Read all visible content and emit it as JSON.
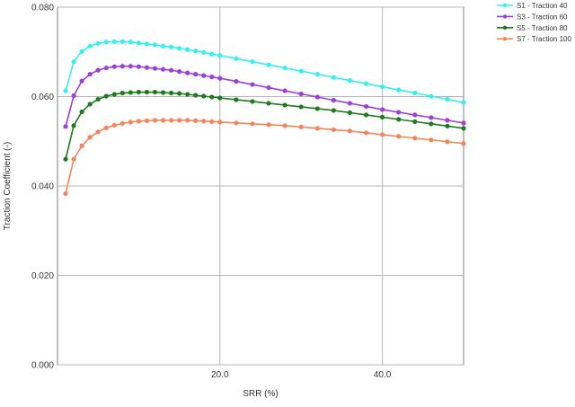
{
  "colors": {
    "background": "#ffffff",
    "grid": "#b4b4b4",
    "axis": "#7f7f7f"
  },
  "chart_data": {
    "type": "line",
    "title": "",
    "xlabel": "SRR (%)",
    "ylabel": "Traction Coefficient (-)",
    "xlim": [
      0,
      50
    ],
    "ylim": [
      0.0,
      0.08
    ],
    "x_ticks": [
      20,
      40
    ],
    "x_tick_labels": [
      "20.0",
      "40.0"
    ],
    "y_ticks": [
      0.0,
      0.02,
      0.04,
      0.06,
      0.08
    ],
    "y_tick_labels": [
      "0.000",
      "0.020",
      "0.040",
      "0.060",
      "0.080"
    ],
    "grid": true,
    "legend_position": "top-right",
    "x": [
      1,
      2,
      3,
      4,
      5,
      6,
      7,
      8,
      9,
      10,
      11,
      12,
      13,
      14,
      15,
      16,
      17,
      18,
      19,
      20,
      22,
      24,
      26,
      28,
      30,
      32,
      34,
      36,
      38,
      40,
      42,
      44,
      46,
      48,
      50
    ],
    "series": [
      {
        "name": "S1 - Traction 40",
        "color": "#33f0f0",
        "values": [
          0.0613,
          0.0678,
          0.0701,
          0.0713,
          0.0719,
          0.0722,
          0.0723,
          0.0723,
          0.0722,
          0.072,
          0.0718,
          0.0716,
          0.0713,
          0.0711,
          0.0708,
          0.0705,
          0.0702,
          0.0699,
          0.0695,
          0.0692,
          0.0685,
          0.0678,
          0.0671,
          0.0664,
          0.0657,
          0.065,
          0.0643,
          0.0636,
          0.0629,
          0.0622,
          0.0615,
          0.0608,
          0.0601,
          0.0594,
          0.0587
        ]
      },
      {
        "name": "S3 - Traction 60",
        "color": "#9b3fd8",
        "values": [
          0.0533,
          0.0602,
          0.0635,
          0.065,
          0.0659,
          0.0664,
          0.0667,
          0.0668,
          0.0668,
          0.0667,
          0.0665,
          0.0663,
          0.0661,
          0.0659,
          0.0656,
          0.0653,
          0.065,
          0.0647,
          0.0644,
          0.0641,
          0.0634,
          0.0627,
          0.062,
          0.0613,
          0.0606,
          0.0599,
          0.0592,
          0.0585,
          0.0578,
          0.0571,
          0.0565,
          0.0559,
          0.0553,
          0.0547,
          0.0541
        ]
      },
      {
        "name": "S5 - Traction 80",
        "color": "#1e7a1e",
        "values": [
          0.046,
          0.0535,
          0.0566,
          0.0583,
          0.0594,
          0.0601,
          0.0605,
          0.0608,
          0.0609,
          0.061,
          0.061,
          0.061,
          0.0609,
          0.0608,
          0.0607,
          0.0605,
          0.0603,
          0.0601,
          0.0599,
          0.0597,
          0.0593,
          0.0589,
          0.0585,
          0.0581,
          0.0577,
          0.0573,
          0.0569,
          0.0564,
          0.0559,
          0.0554,
          0.0549,
          0.0544,
          0.0539,
          0.0534,
          0.0529
        ]
      },
      {
        "name": "S7 - Traction 100",
        "color": "#f4845a",
        "values": [
          0.0383,
          0.046,
          0.049,
          0.0509,
          0.0521,
          0.053,
          0.0536,
          0.054,
          0.0543,
          0.0545,
          0.0546,
          0.0547,
          0.0547,
          0.0547,
          0.0547,
          0.0547,
          0.0546,
          0.0545,
          0.0544,
          0.0543,
          0.0541,
          0.0539,
          0.0537,
          0.0535,
          0.0532,
          0.0529,
          0.0526,
          0.0523,
          0.0519,
          0.0515,
          0.0511,
          0.0507,
          0.0503,
          0.0499,
          0.0495
        ]
      }
    ]
  }
}
